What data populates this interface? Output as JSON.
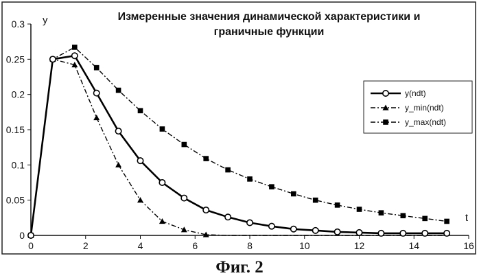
{
  "chart_data": {
    "type": "line",
    "title_lines": [
      "Измеренные значения динамической характеристики и",
      "граничные функции"
    ],
    "xlabel": "t",
    "ylabel": "y",
    "xlim": [
      0,
      16
    ],
    "ylim": [
      0,
      0.3
    ],
    "xticks": [
      0,
      2,
      4,
      6,
      8,
      10,
      12,
      14,
      16
    ],
    "yticks": [
      0,
      0.05,
      0.1,
      0.15,
      0.2,
      0.25,
      0.3
    ],
    "xtick_labels": [
      "0",
      "2",
      "4",
      "6",
      "8",
      "10",
      "12",
      "14",
      "16"
    ],
    "ytick_labels": [
      "0",
      "0.05",
      "0.1",
      "0.15",
      "0.2",
      "0.25",
      "0.3"
    ],
    "grid": false,
    "legend_position": "right",
    "series": [
      {
        "name": "y(ndt)",
        "style": "solid",
        "marker": "circle",
        "color": "#000000",
        "x": [
          0,
          0.8,
          1.6,
          2.4,
          3.2,
          4.0,
          4.8,
          5.6,
          6.4,
          7.2,
          8.0,
          8.8,
          9.6,
          10.4,
          11.2,
          12.0,
          12.8,
          13.6,
          14.4,
          15.2
        ],
        "y": [
          0,
          0.25,
          0.255,
          0.202,
          0.148,
          0.106,
          0.075,
          0.053,
          0.036,
          0.026,
          0.018,
          0.013,
          0.009,
          0.007,
          0.005,
          0.004,
          0.003,
          0.003,
          0.003,
          0.003
        ]
      },
      {
        "name": "y_min(ndt)",
        "style": "dashdot",
        "marker": "triangle",
        "color": "#000000",
        "x": [
          0,
          0.8,
          1.6,
          2.4,
          3.2,
          4.0,
          4.8,
          5.6,
          6.4,
          7.2,
          8.0,
          8.8,
          9.6,
          10.4,
          11.2,
          12.0,
          12.8,
          13.6,
          14.4,
          15.2
        ],
        "y": [
          0,
          0.25,
          0.242,
          0.167,
          0.1,
          0.05,
          0.02,
          0.008,
          0.001,
          0,
          0,
          0,
          0,
          0,
          0,
          0,
          0,
          0,
          0,
          0
        ]
      },
      {
        "name": "y_max(ndt)",
        "style": "dashdot",
        "marker": "square",
        "color": "#000000",
        "x": [
          0,
          0.8,
          1.6,
          2.4,
          3.2,
          4.0,
          4.8,
          5.6,
          6.4,
          7.2,
          8.0,
          8.8,
          9.6,
          10.4,
          11.2,
          12.0,
          12.8,
          13.6,
          14.4,
          15.2
        ],
        "y": [
          0,
          0.25,
          0.267,
          0.238,
          0.206,
          0.177,
          0.151,
          0.129,
          0.109,
          0.093,
          0.08,
          0.069,
          0.059,
          0.05,
          0.043,
          0.037,
          0.032,
          0.028,
          0.024,
          0.02
        ]
      }
    ]
  },
  "caption": "Фиг. 2"
}
